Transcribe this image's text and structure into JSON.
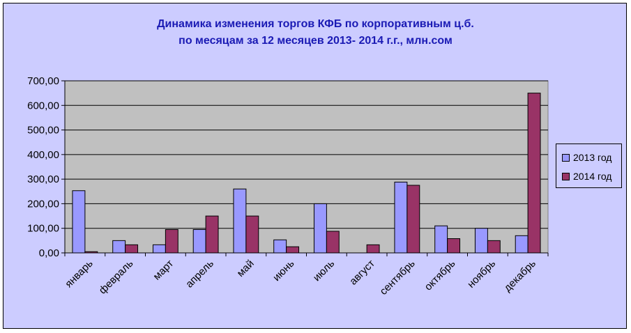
{
  "chart_data": {
    "type": "bar",
    "title": [
      "Динамика изменения торгов КФБ по корпоративным ц.б.",
      "по месяцам за 12 месяцев 2013- 2014 г.г., млн.сом"
    ],
    "categories": [
      "январь",
      "февраль",
      "март",
      "апрель",
      "май",
      "июнь",
      "июль",
      "август",
      "сентябрь",
      "октябрь",
      "ноябрь",
      "декабрь"
    ],
    "series": [
      {
        "name": "2013 год",
        "color": "#9999ff",
        "values": [
          253,
          50,
          33,
          95,
          260,
          53,
          200,
          0,
          288,
          110,
          100,
          70
        ]
      },
      {
        "name": "2014 год",
        "color": "#993366",
        "values": [
          5,
          33,
          95,
          150,
          150,
          25,
          88,
          33,
          275,
          58,
          50,
          650
        ]
      }
    ],
    "ylim": [
      0,
      700
    ],
    "yticks": [
      "0,00",
      "100,00",
      "200,00",
      "300,00",
      "400,00",
      "500,00",
      "600,00",
      "700,00"
    ],
    "plot_background": "#c0c0c0",
    "chart_background": "#ccccff",
    "grid": true,
    "legend": "right"
  }
}
